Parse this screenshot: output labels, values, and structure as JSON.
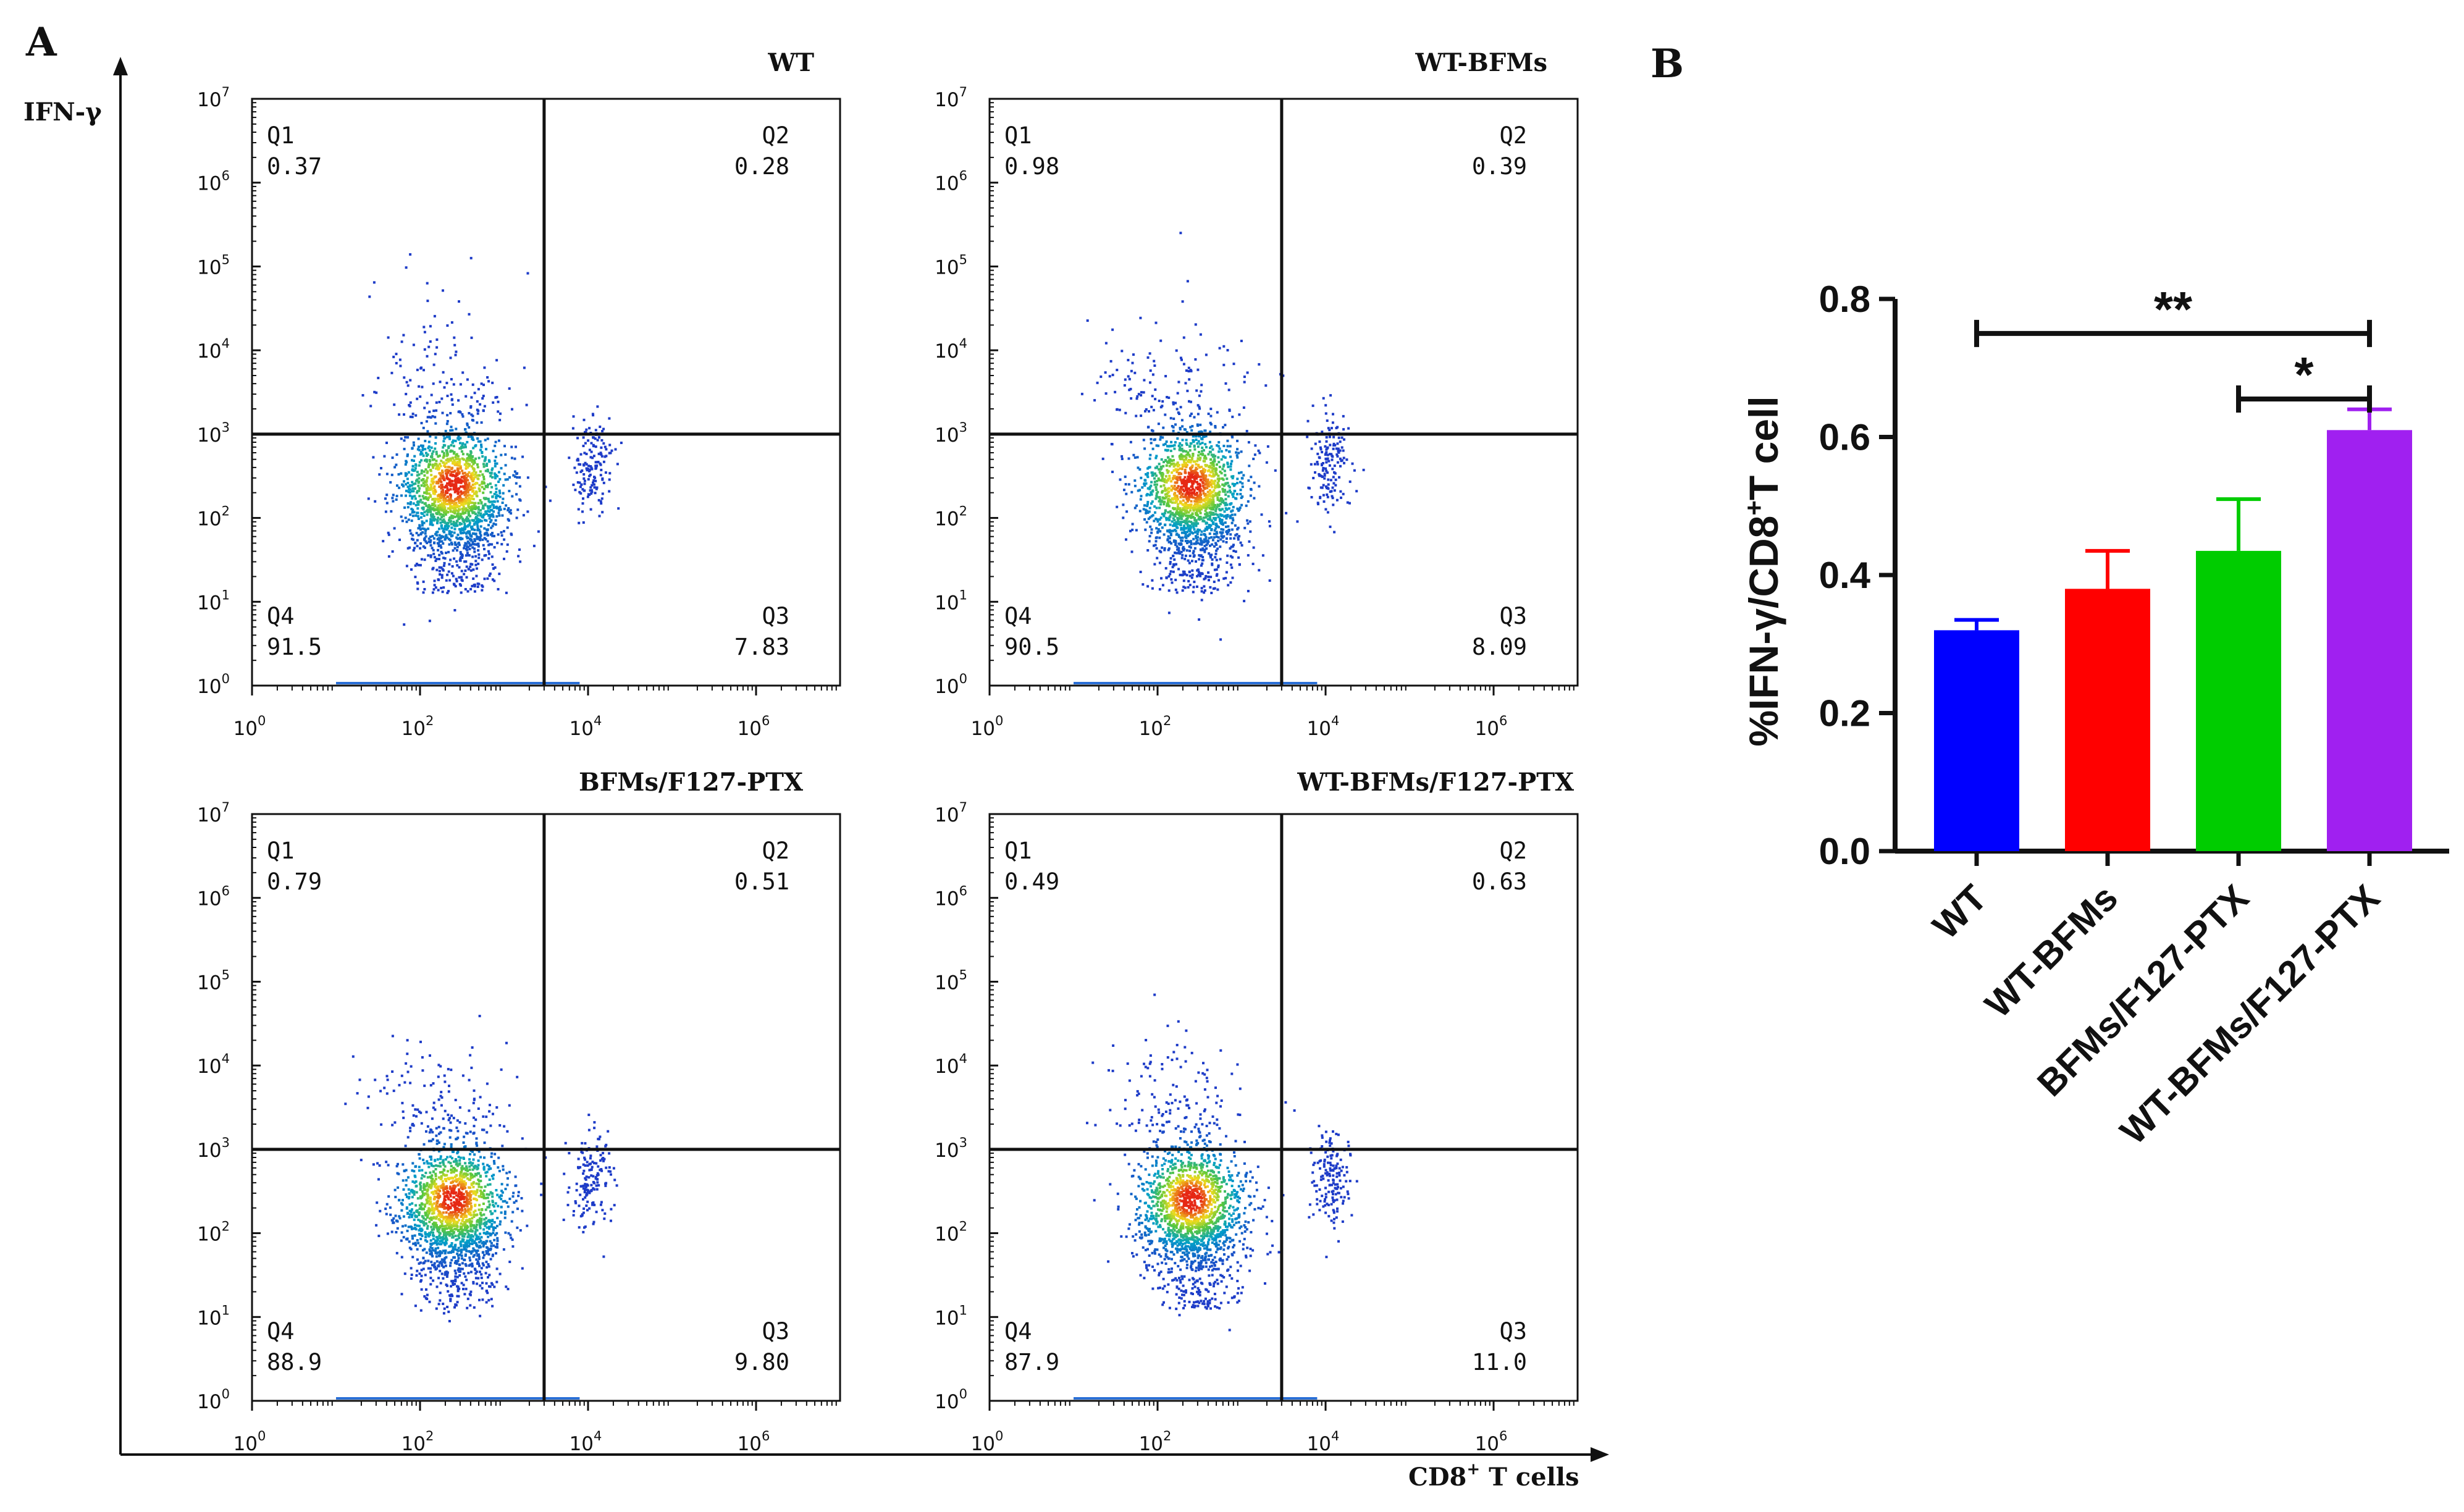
{
  "chart_data": [
    {
      "type": "scatter",
      "panel_label": "A",
      "x_label": "CD8",
      "x_label_sup": "+",
      "x_label_tail": " T cells",
      "y_label": "IFN-γ",
      "axis_scale": "log10",
      "axis_range": [
        1,
        10000000
      ],
      "x_tick_base": "10",
      "x_tick_exponents": [
        "0",
        "2",
        "4",
        "6"
      ],
      "y_tick_base": "10",
      "y_tick_exponents": [
        "0",
        "1",
        "2",
        "3",
        "4",
        "5",
        "6",
        "7"
      ],
      "gate": {
        "x": 3000,
        "y": 1000
      },
      "plots": [
        {
          "title": "WT",
          "quadrants": [
            {
              "name": "Q1",
              "value": "0.37"
            },
            {
              "name": "Q2",
              "value": "0.28"
            },
            {
              "name": "Q4",
              "value": "91.5"
            },
            {
              "name": "Q3",
              "value": "7.83"
            }
          ]
        },
        {
          "title": "WT-BFMs",
          "quadrants": [
            {
              "name": "Q1",
              "value": "0.98"
            },
            {
              "name": "Q2",
              "value": "0.39"
            },
            {
              "name": "Q4",
              "value": "90.5"
            },
            {
              "name": "Q3",
              "value": "8.09"
            }
          ]
        },
        {
          "title": "BFMs/F127-PTX",
          "quadrants": [
            {
              "name": "Q1",
              "value": "0.79"
            },
            {
              "name": "Q2",
              "value": "0.51"
            },
            {
              "name": "Q4",
              "value": "88.9"
            },
            {
              "name": "Q3",
              "value": "9.80"
            }
          ]
        },
        {
          "title": "WT-BFMs/F127-PTX",
          "quadrants": [
            {
              "name": "Q1",
              "value": "0.49"
            },
            {
              "name": "Q2",
              "value": "0.63"
            },
            {
              "name": "Q4",
              "value": "87.9"
            },
            {
              "name": "Q3",
              "value": "11.0"
            }
          ]
        }
      ]
    },
    {
      "type": "bar",
      "panel_label": "B",
      "categories": [
        "WT",
        "WT-BFMs",
        "BFMs/F127-PTX",
        "WT-BFMs/F127-PTX"
      ],
      "values": [
        0.32,
        0.38,
        0.435,
        0.61
      ],
      "errors": [
        0.015,
        0.055,
        0.075,
        0.03
      ],
      "colors": [
        "#0000ff",
        "#ff0000",
        "#00cc00",
        "#a020f0"
      ],
      "ylabel_pre": "%IFN-γ/CD8",
      "ylabel_sup": "+",
      "ylabel_post": "T cell",
      "ylim": [
        0,
        0.8
      ],
      "yticks": [
        "0.0",
        "0.2",
        "0.4",
        "0.6",
        "0.8"
      ],
      "significance": [
        {
          "from": 0,
          "to": 3,
          "label": "**",
          "level": 0.75
        },
        {
          "from": 2,
          "to": 3,
          "label": "*",
          "level": 0.655
        }
      ]
    }
  ]
}
